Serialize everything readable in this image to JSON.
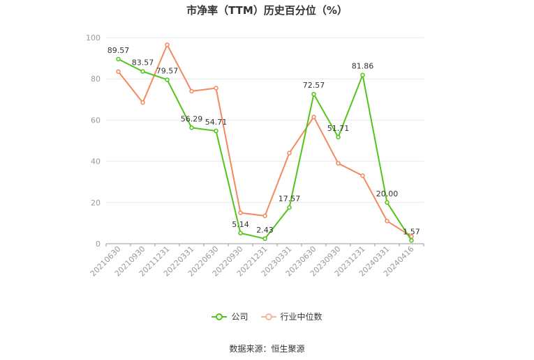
{
  "chart_data": {
    "type": "line",
    "title": "市净率（TTM）历史百分位（%）",
    "categories": [
      "20210630",
      "20210930",
      "20211231",
      "20220331",
      "20220630",
      "20220930",
      "20221231",
      "20230331",
      "20230630",
      "20230930",
      "20231231",
      "20240331",
      "20240416"
    ],
    "series": [
      {
        "name": "公司",
        "color": "#52c41a",
        "values": [
          89.57,
          83.57,
          79.57,
          56.29,
          54.71,
          5.14,
          2.43,
          17.57,
          72.57,
          51.71,
          81.86,
          20.0,
          1.57
        ],
        "labels": [
          "89.57",
          "83.57",
          "79.57",
          "56.29",
          "54.71",
          "5.14",
          "2.43",
          "17.57",
          "72.57",
          "51.71",
          "81.86",
          "20.00",
          "1.57"
        ]
      },
      {
        "name": "行业中位数",
        "color": "#f4895f",
        "values": [
          83.5,
          68.5,
          96.5,
          74,
          75.5,
          15,
          13.5,
          44,
          61.5,
          39,
          33,
          11,
          3.5
        ]
      }
    ],
    "ylim": [
      0,
      100
    ],
    "yticks": [
      0,
      20,
      40,
      60,
      80,
      100
    ],
    "grid": true,
    "legend": "bottom-center"
  },
  "source_text": "数据来源：恒生聚源"
}
